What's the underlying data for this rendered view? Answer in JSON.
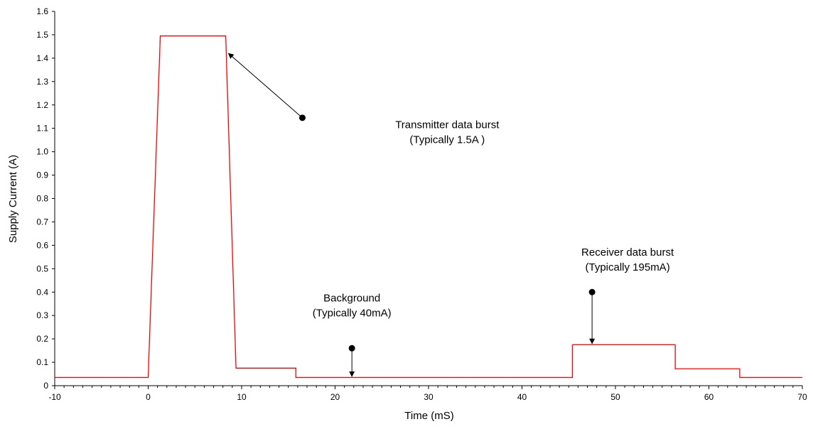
{
  "chart_data": {
    "type": "line",
    "xlabel": "Time (mS)",
    "ylabel": "Supply Current (A)",
    "xlim": [
      -10,
      70
    ],
    "ylim": [
      0,
      1.6
    ],
    "x_ticks": [
      "-10",
      "0",
      "10",
      "20",
      "30",
      "40",
      "50",
      "60",
      "70"
    ],
    "x_tick_values": [
      -10,
      0,
      10,
      20,
      30,
      40,
      50,
      60,
      70
    ],
    "y_ticks": [
      "0",
      "0.1",
      "0.2",
      "0.3",
      "0.4",
      "0.5",
      "0.6",
      "0.7",
      "0.8",
      "0.9",
      "1.0",
      "1.1",
      "1.2",
      "1.3",
      "1.4",
      "1.5",
      "1.6"
    ],
    "y_tick_values": [
      0,
      0.1,
      0.2,
      0.3,
      0.4,
      0.5,
      0.6,
      0.7,
      0.8,
      0.9,
      1.0,
      1.1,
      1.2,
      1.3,
      1.4,
      1.5,
      1.6
    ],
    "grid": false,
    "line_color": "#ff0000",
    "series": [
      {
        "x": [
          -10,
          0,
          1.3,
          8.3,
          9.4,
          15.8,
          15.8,
          45.4,
          45.4,
          56.4,
          56.4,
          63.3,
          63.3,
          70
        ],
        "y": [
          0.035,
          0.035,
          1.495,
          1.495,
          0.075,
          0.075,
          0.035,
          0.035,
          0.175,
          0.175,
          0.072,
          0.072,
          0.035,
          0.035
        ]
      }
    ],
    "annotations": [
      {
        "lines": [
          "Transmitter data burst",
          "(Typically 1.5A )"
        ],
        "text_x": 32,
        "text_y_top": 1.1,
        "dot": [
          16.5,
          1.145
        ],
        "arrow_to": [
          8.6,
          1.42
        ]
      },
      {
        "lines": [
          "Background",
          "(Typically 40mA)"
        ],
        "text_x": 21.8,
        "text_y_top": 0.36,
        "dot": [
          21.8,
          0.16
        ],
        "arrow_to": [
          21.8,
          0.04
        ]
      },
      {
        "lines": [
          "Receiver data burst",
          "(Typically 195mA)"
        ],
        "text_x": 51.3,
        "text_y_top": 0.555,
        "dot": [
          47.5,
          0.4
        ],
        "arrow_to": [
          47.5,
          0.18
        ]
      }
    ]
  }
}
